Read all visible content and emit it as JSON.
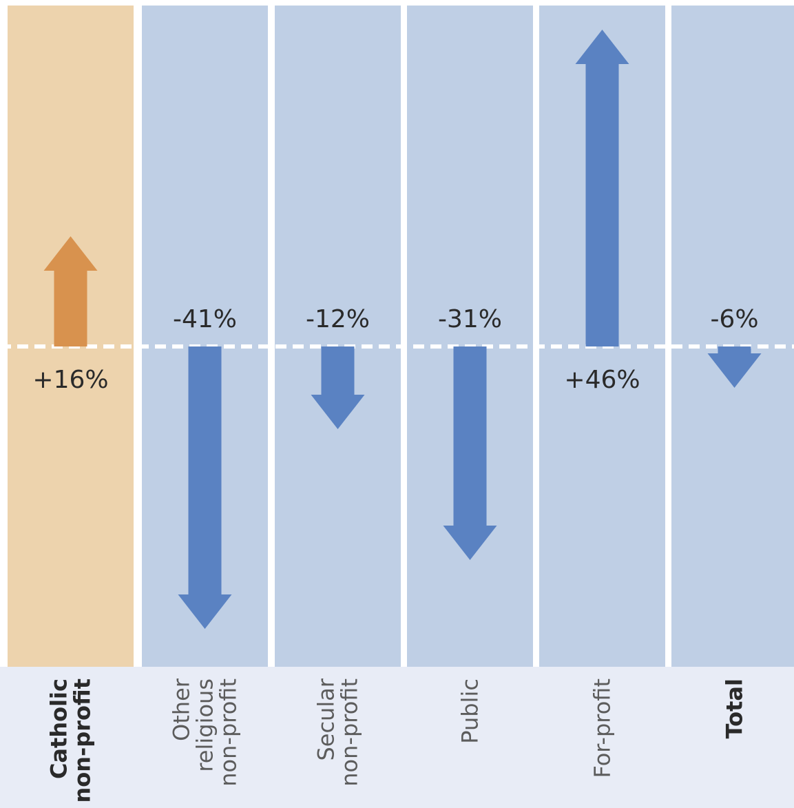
{
  "colors": {
    "highlight_column": "#EDD3AD",
    "column": "#BFCFE5",
    "label_band": "#E8ECF6",
    "highlight_arrow": "#D8924E",
    "arrow": "#5A82C2",
    "baseline": "#FFFFFF",
    "text": "#2A2A2A",
    "text_light": "#5C5C5C"
  },
  "chart_data": {
    "type": "bar",
    "categories": [
      "Catholic non-profit",
      "Other religious non-profit",
      "Secular non-profit",
      "Public",
      "For-profit",
      "Total"
    ],
    "values": [
      16,
      -41,
      -12,
      -31,
      46,
      -6
    ],
    "value_labels": [
      "+16%",
      "-41%",
      "-12%",
      "-31%",
      "+46%",
      "-6%"
    ],
    "category_lines": [
      [
        "Catholic",
        "non-profit"
      ],
      [
        "Other",
        "religious",
        "non-profit"
      ],
      [
        "Secular",
        "non-profit"
      ],
      [
        "Public"
      ],
      [
        "For-profit"
      ],
      [
        "Total"
      ]
    ],
    "bold_categories": [
      "Catholic non-profit",
      "Total"
    ],
    "highlight_category": "Catholic non-profit",
    "baseline": 0,
    "title": "",
    "xlabel": "",
    "ylabel": "",
    "grid": false,
    "legend": "none"
  }
}
